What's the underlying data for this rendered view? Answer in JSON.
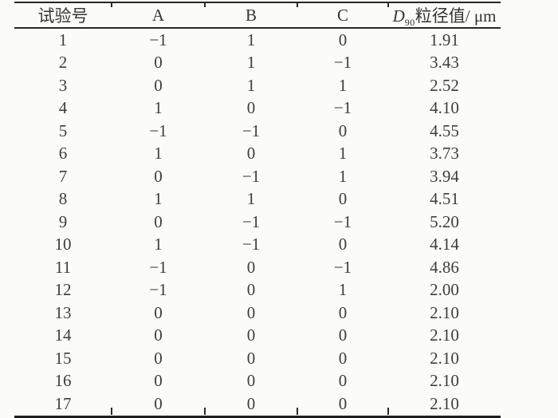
{
  "colors": {
    "background": "#fbfbf8",
    "text": "#3d3d3d",
    "rule": "#262626"
  },
  "table": {
    "headers": {
      "run": "试验号",
      "a": "A",
      "b": "B",
      "c": "C"
    },
    "d90_header": {
      "base": "D",
      "sub": "90",
      "rest": "粒径值/ μm"
    },
    "rows": [
      [
        "1",
        "−1",
        "1",
        "0",
        "1.91"
      ],
      [
        "2",
        "0",
        "1",
        "−1",
        "3.43"
      ],
      [
        "3",
        "0",
        "1",
        "1",
        "2.52"
      ],
      [
        "4",
        "1",
        "0",
        "−1",
        "4.10"
      ],
      [
        "5",
        "−1",
        "−1",
        "0",
        "4.55"
      ],
      [
        "6",
        "1",
        "0",
        "1",
        "3.73"
      ],
      [
        "7",
        "0",
        "−1",
        "1",
        "3.94"
      ],
      [
        "8",
        "1",
        "1",
        "0",
        "4.51"
      ],
      [
        "9",
        "0",
        "−1",
        "−1",
        "5.20"
      ],
      [
        "10",
        "1",
        "−1",
        "0",
        "4.14"
      ],
      [
        "11",
        "−1",
        "0",
        "−1",
        "4.86"
      ],
      [
        "12",
        "−1",
        "0",
        "1",
        "2.00"
      ],
      [
        "13",
        "0",
        "0",
        "0",
        "2.10"
      ],
      [
        "14",
        "0",
        "0",
        "0",
        "2.10"
      ],
      [
        "15",
        "0",
        "0",
        "0",
        "2.10"
      ],
      [
        "16",
        "0",
        "0",
        "0",
        "2.10"
      ],
      [
        "17",
        "0",
        "0",
        "0",
        "2.10"
      ]
    ]
  }
}
